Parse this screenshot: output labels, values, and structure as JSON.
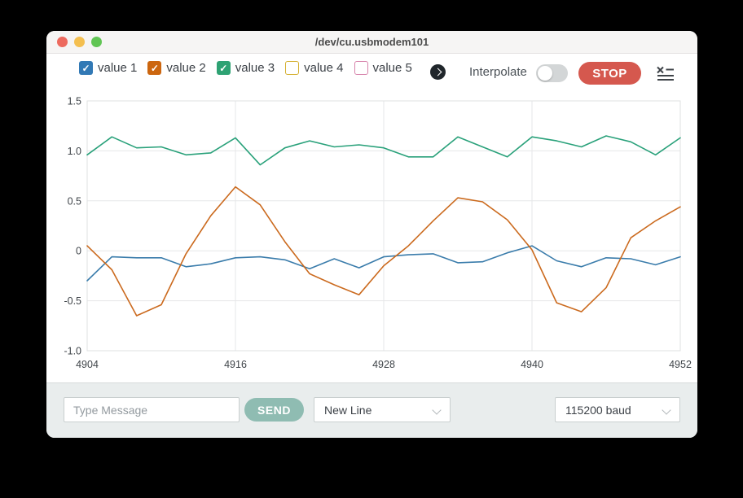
{
  "window": {
    "title": "/dev/cu.usbmodem101",
    "traffic_lights": {
      "close": "#ed6a5e",
      "minimize": "#f4bf4f",
      "zoom": "#61c554"
    }
  },
  "toolbar": {
    "legend": [
      {
        "label": "value 1",
        "checked": true,
        "color": "#3279b5"
      },
      {
        "label": "value 2",
        "checked": true,
        "color": "#cc660f"
      },
      {
        "label": "value 3",
        "checked": true,
        "color": "#2ea273"
      },
      {
        "label": "value 4",
        "checked": false,
        "color": "#d5b031"
      },
      {
        "label": "value 5",
        "checked": false,
        "color": "#d783ab"
      }
    ],
    "interpolate_label": "Interpolate",
    "interpolate_on": false,
    "stop_label": "STOP",
    "stop_color": "#d5584e",
    "icons": [
      "chevron-right-circle-icon",
      "variables-list-icon"
    ]
  },
  "chart_data": {
    "type": "line",
    "x": [
      4904,
      4906,
      4908,
      4910,
      4912,
      4914,
      4916,
      4918,
      4920,
      4922,
      4924,
      4926,
      4928,
      4930,
      4932,
      4934,
      4936,
      4938,
      4940,
      4942,
      4944,
      4946,
      4948,
      4950,
      4952
    ],
    "series": [
      {
        "name": "value 1",
        "color": "#3a7cab",
        "values": [
          -0.3,
          -0.06,
          -0.07,
          -0.07,
          -0.16,
          -0.13,
          -0.07,
          -0.06,
          -0.09,
          -0.18,
          -0.08,
          -0.17,
          -0.06,
          -0.04,
          -0.03,
          -0.12,
          -0.11,
          -0.02,
          0.05,
          -0.1,
          -0.16,
          -0.07,
          -0.08,
          -0.14,
          -0.06
        ]
      },
      {
        "name": "value 2",
        "color": "#cb6a1e",
        "values": [
          0.05,
          -0.19,
          -0.65,
          -0.54,
          -0.03,
          0.35,
          0.64,
          0.46,
          0.09,
          -0.23,
          -0.34,
          -0.44,
          -0.15,
          0.05,
          0.3,
          0.53,
          0.49,
          0.31,
          0.01,
          -0.52,
          -0.61,
          -0.37,
          0.13,
          0.3,
          0.44
        ]
      },
      {
        "name": "value 3",
        "color": "#29a17a",
        "values": [
          0.96,
          1.14,
          1.03,
          1.04,
          0.96,
          0.98,
          1.13,
          0.86,
          1.03,
          1.1,
          1.04,
          1.06,
          1.03,
          0.94,
          0.94,
          1.14,
          1.04,
          0.94,
          1.14,
          1.1,
          1.04,
          1.15,
          1.09,
          0.96,
          1.13
        ]
      }
    ],
    "xlim": [
      4904,
      4952
    ],
    "ylim": [
      -1.0,
      1.5
    ],
    "x_ticks": [
      {
        "label": "4904",
        "value": 4904
      },
      {
        "label": "4916",
        "value": 4916
      },
      {
        "label": "4928",
        "value": 4928
      },
      {
        "label": "4940",
        "value": 4940
      },
      {
        "label": "4952",
        "value": 4952
      }
    ],
    "y_ticks": [
      {
        "label": "1.5",
        "value": 1.5
      },
      {
        "label": "1.0",
        "value": 1.0
      },
      {
        "label": "0.5",
        "value": 0.5
      },
      {
        "label": "0",
        "value": 0
      },
      {
        "label": "-0.5",
        "value": -0.5
      },
      {
        "label": "-1.0",
        "value": -1.0
      }
    ],
    "grid": true,
    "legend_position": "toolbar-top",
    "title": "",
    "xlabel": "",
    "ylabel": ""
  },
  "bottom_bar": {
    "message_placeholder": "Type Message",
    "send_label": "SEND",
    "send_color": "#8fbcb2",
    "line_ending_selected": "New Line",
    "baud_selected": "115200 baud"
  }
}
